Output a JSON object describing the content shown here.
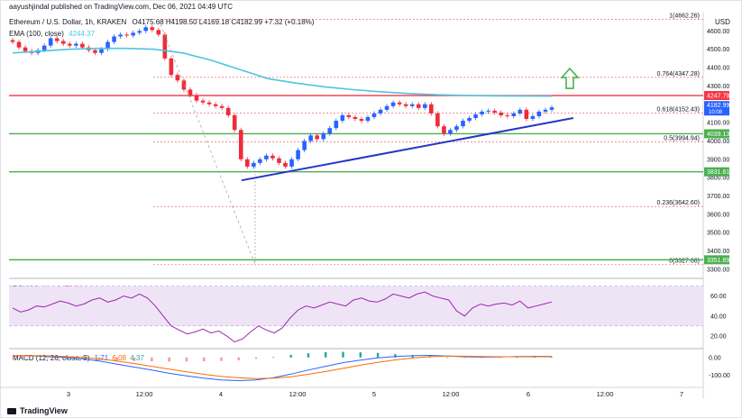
{
  "header": {
    "published": "aayushjindal published on TradingView.com, Dec 06, 2021 04:49 UTC",
    "symbol": "Ethereum / U.S. Dollar, 1h, KRAKEN",
    "ohlc": "O4175.68  H4198.50  L4169.18  C4182.99  +7.32 (+0.18%)",
    "ema_label": "EMA (100, close)",
    "ema_value": "4244.37",
    "currency": "USD"
  },
  "footer": {
    "brand": "TradingView"
  },
  "colors": {
    "up": "#2962ff",
    "down": "#ef2b3a",
    "ema": "#4ec5e0",
    "trend": "#2537c4",
    "support": "#4caf50",
    "resistance": "#f23645",
    "fib": "#ef5350",
    "rsi": "#9c27b0",
    "rsi_band": "#efe4f6",
    "macd": "#2962ff",
    "signal": "#ff6d00",
    "arrow": "#4caf50"
  },
  "chart_data": [
    {
      "type": "candlestick",
      "title": "Ethereum / U.S. Dollar, 1h, KRAKEN",
      "x_ticks": [
        "3",
        "12:00",
        "4",
        "12:00",
        "5",
        "12:00",
        "6",
        "12:00",
        "7"
      ],
      "y_ticks": [
        3300,
        3400,
        3500,
        3600,
        3700,
        3800,
        3900,
        4000,
        4100,
        4200,
        4300,
        4400,
        4500,
        4600
      ],
      "ylim": [
        3270,
        4700
      ],
      "candles_close": [
        4540,
        4510,
        4490,
        4480,
        4495,
        4520,
        4560,
        4545,
        4530,
        4520,
        4530,
        4510,
        4495,
        4480,
        4500,
        4540,
        4570,
        4580,
        4575,
        4590,
        4600,
        4620,
        4605,
        4580,
        4450,
        4360,
        4330,
        4280,
        4250,
        4220,
        4210,
        4200,
        4190,
        4180,
        4140,
        4060,
        3900,
        3860,
        3880,
        3900,
        3920,
        3905,
        3880,
        3860,
        3900,
        3950,
        4000,
        4030,
        4010,
        4040,
        4070,
        4110,
        4140,
        4130,
        4120,
        4110,
        4130,
        4150,
        4170,
        4190,
        4210,
        4200,
        4190,
        4200,
        4180,
        4200,
        4150,
        4080,
        4040,
        4060,
        4080,
        4110,
        4125,
        4145,
        4160,
        4165,
        4155,
        4140,
        4135,
        4150,
        4170,
        4120,
        4135,
        4160,
        4170,
        4182.99
      ],
      "ema_100": [
        4480,
        4490,
        4500,
        4505,
        4505,
        4500,
        4480,
        4440,
        4390,
        4340,
        4315,
        4295,
        4280,
        4268,
        4258,
        4252,
        4248,
        4246,
        4245,
        4244.37
      ],
      "fib_levels": [
        {
          "label": "1(4662.26)",
          "value": 4662.26
        },
        {
          "label": "0.764(4347.28)",
          "value": 4347.28
        },
        {
          "label": "0.618(4152.43)",
          "value": 4152.43
        },
        {
          "label": "0.5(3994.94)",
          "value": 3994.94
        },
        {
          "label": "0.236(3642.60)",
          "value": 3642.6
        },
        {
          "label": "0(3327.68)",
          "value": 3327.68
        }
      ],
      "horizontal_lines": [
        {
          "value": 4247.79,
          "label": "4247.79",
          "color": "#f23645"
        },
        {
          "value": 4039.13,
          "label": "4039.13",
          "color": "#4caf50"
        },
        {
          "value": 3831.61,
          "label": "3831.61",
          "color": "#4caf50"
        },
        {
          "value": 3351.69,
          "label": "3351.69",
          "color": "#4caf50"
        }
      ],
      "trend_line": {
        "from": 3785,
        "to": 4125
      },
      "last_price": {
        "value": "4182.99",
        "sub": "10:08"
      }
    },
    {
      "type": "line",
      "title": "RSI (14, close)",
      "last_value": "54.04",
      "y_ticks": [
        20,
        40,
        60
      ],
      "ylim": [
        10,
        75
      ],
      "band": [
        30,
        70
      ],
      "values": [
        48,
        44,
        46,
        50,
        49,
        52,
        55,
        53,
        50,
        52,
        56,
        58,
        54,
        56,
        60,
        58,
        62,
        58,
        50,
        40,
        30,
        26,
        22,
        24,
        27,
        23,
        25,
        20,
        14,
        17,
        24,
        30,
        26,
        23,
        28,
        38,
        46,
        50,
        48,
        51,
        54,
        52,
        50,
        56,
        58,
        55,
        54,
        57,
        62,
        60,
        58,
        62,
        64,
        60,
        58,
        56,
        45,
        40,
        48,
        52,
        50,
        52,
        53,
        51,
        55,
        48,
        50,
        52,
        54.04
      ]
    },
    {
      "type": "histogram+line",
      "title": "MACD (12, 26, close, 9)",
      "values_text": [
        "1.71",
        "6.08",
        "4.37"
      ],
      "y_ticks": [
        0.0,
        -100.0
      ],
      "y_tick_labels": [
        "0.00",
        "-100.00"
      ],
      "ylim": [
        -160,
        40
      ],
      "macd": [
        8,
        10,
        5,
        0,
        -8,
        -20,
        -38,
        -55,
        -72,
        -90,
        -105,
        -118,
        -128,
        -132,
        -128,
        -115,
        -95,
        -72,
        -50,
        -30,
        -15,
        -2,
        5,
        10,
        12,
        8,
        4,
        2,
        3,
        5,
        6,
        6
      ],
      "signal": [
        10,
        11,
        9,
        5,
        0,
        -8,
        -20,
        -35,
        -50,
        -66,
        -82,
        -96,
        -108,
        -116,
        -120,
        -118,
        -110,
        -96,
        -80,
        -62,
        -44,
        -28,
        -14,
        -3,
        4,
        8,
        7,
        5,
        4,
        4,
        4,
        4
      ]
    }
  ]
}
